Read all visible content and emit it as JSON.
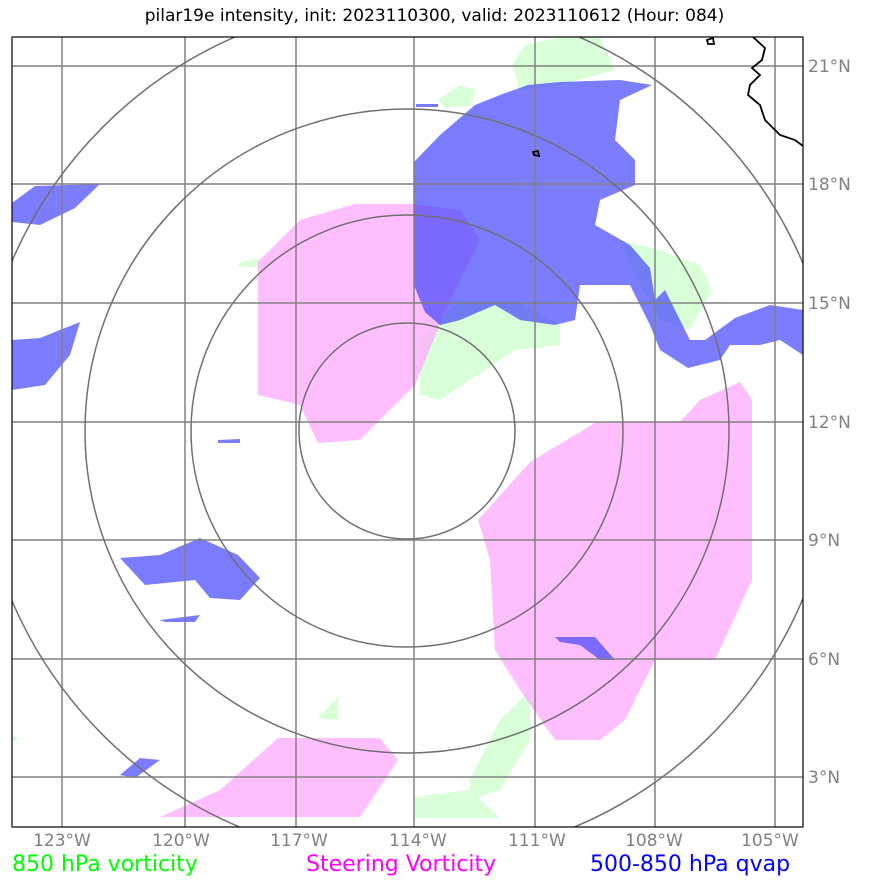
{
  "title": "pilar19e intensity, init: 2023110300, valid: 2023110612 (Hour: 084)",
  "map": {
    "lon_ticks": [
      "123°W",
      "120°W",
      "117°W",
      "114°W",
      "111°W",
      "108°W",
      "105°W"
    ],
    "lat_ticks": [
      "21°N",
      "18°N",
      "15°N",
      "12°N",
      "9°N",
      "6°N",
      "3°N"
    ],
    "center": {
      "lon": -114,
      "lat": 11.8
    },
    "range_rings_count": 4
  },
  "legend": [
    {
      "label": "850 hPa vorticity",
      "color": "#00ff00"
    },
    {
      "label": "Steering Vorticity",
      "color": "#ff00ff"
    },
    {
      "label": "500-850 hPa qvap",
      "color": "#0000ff"
    }
  ],
  "colors": {
    "vort850_fill": "#ccffcc",
    "steering_fill": "#ffaaff",
    "qvap_fill": "#4444ff",
    "grid": "#808080",
    "ring": "#707070",
    "coast": "#000000"
  }
}
